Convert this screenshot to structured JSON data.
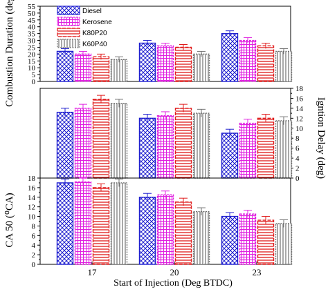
{
  "chart_data": {
    "type": "bar",
    "xlabel": "Start of Injection (Deg BTDC)",
    "categories": [
      "17",
      "20",
      "23"
    ],
    "legend": {
      "placement": "top-left",
      "entries": [
        "Diesel",
        "Kerosene",
        "K80P20",
        "K60P40"
      ]
    },
    "colors": {
      "Diesel": "#1f1fcf",
      "Kerosene": "#e020e0",
      "K80P20": "#e01a1a",
      "K60P40": "#707070"
    },
    "panels": [
      {
        "ylabel": "Combustion Duration (deg)",
        "axis_side": "left",
        "ylim": [
          0,
          55
        ],
        "ytick_labels": [
          "0",
          "5",
          "10",
          "15",
          "20",
          "25",
          "30",
          "35",
          "40",
          "45",
          "50",
          "55"
        ],
        "series": [
          {
            "name": "Diesel",
            "values": [
              22,
              28,
              35
            ],
            "errors": [
              2,
              2,
              2
            ]
          },
          {
            "name": "Kerosene",
            "values": [
              20,
              26,
              30
            ],
            "errors": [
              2,
              2,
              2
            ]
          },
          {
            "name": "K80P20",
            "values": [
              18,
              25,
              26
            ],
            "errors": [
              2,
              2,
              2
            ]
          },
          {
            "name": "K60P40",
            "values": [
              16,
              20,
              22
            ],
            "errors": [
              2,
              2,
              2
            ]
          }
        ]
      },
      {
        "ylabel": "Igntion Delay (deg)",
        "axis_side": "right",
        "ylim": [
          0,
          18
        ],
        "ytick_labels": [
          "0",
          "2",
          "4",
          "6",
          "8",
          "10",
          "12",
          "14",
          "16",
          "18"
        ],
        "series": [
          {
            "name": "Diesel",
            "values": [
              13.2,
              12.0,
              9.0
            ],
            "errors": [
              0.8,
              0.8,
              0.8
            ]
          },
          {
            "name": "Kerosene",
            "values": [
              14.0,
              12.5,
              11.0
            ],
            "errors": [
              0.8,
              0.8,
              0.8
            ]
          },
          {
            "name": "K80P20",
            "values": [
              15.8,
              14.0,
              12.0
            ],
            "errors": [
              0.8,
              0.8,
              0.8
            ]
          },
          {
            "name": "K60P40",
            "values": [
              15.0,
              13.0,
              11.5
            ],
            "errors": [
              0.8,
              0.8,
              0.8
            ]
          }
        ]
      },
      {
        "ylabel": "CA 50 (⁰CA)",
        "axis_side": "left",
        "ylim": [
          0,
          18
        ],
        "ytick_labels": [
          "0",
          "2",
          "4",
          "6",
          "8",
          "10",
          "12",
          "14",
          "16",
          "18"
        ],
        "series": [
          {
            "name": "Diesel",
            "values": [
              17.0,
              14.0,
              10.0
            ],
            "errors": [
              0.8,
              0.8,
              0.8
            ]
          },
          {
            "name": "Kerosene",
            "values": [
              17.2,
              14.5,
              10.5
            ],
            "errors": [
              0.8,
              0.8,
              0.8
            ]
          },
          {
            "name": "K80P20",
            "values": [
              16.0,
              13.0,
              9.2
            ],
            "errors": [
              0.8,
              0.8,
              0.8
            ]
          },
          {
            "name": "K60P40",
            "values": [
              17.0,
              11.0,
              8.5
            ],
            "errors": [
              0.8,
              0.8,
              0.8
            ]
          }
        ]
      }
    ]
  }
}
